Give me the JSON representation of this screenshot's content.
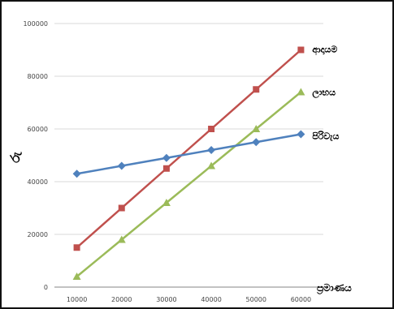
{
  "chart_data": {
    "type": "line",
    "title": "",
    "xlabel": "ප්‍රමාණය",
    "ylabel": "රු",
    "x": [
      10000,
      20000,
      30000,
      40000,
      50000,
      60000
    ],
    "x_tick_labels": [
      "10000",
      "20000",
      "30000",
      "40000",
      "50000",
      "60000"
    ],
    "ylim": [
      0,
      100000
    ],
    "y_tick_labels": [
      "0",
      "20000",
      "40000",
      "60000",
      "80000",
      "100000"
    ],
    "grid": true,
    "series": [
      {
        "name": "ආදායම",
        "values": [
          15000,
          30000,
          45000,
          60000,
          75000,
          90000
        ],
        "color": "#C0504D",
        "marker": "square"
      },
      {
        "name": "ලාභය",
        "values": [
          4000,
          18000,
          32000,
          46000,
          60000,
          74000
        ],
        "color": "#9BBB59",
        "marker": "triangle"
      },
      {
        "name": "පිරිවැය",
        "values": [
          43000,
          46000,
          49000,
          52000,
          55000,
          58000
        ],
        "color": "#4F81BD",
        "marker": "diamond"
      }
    ]
  }
}
